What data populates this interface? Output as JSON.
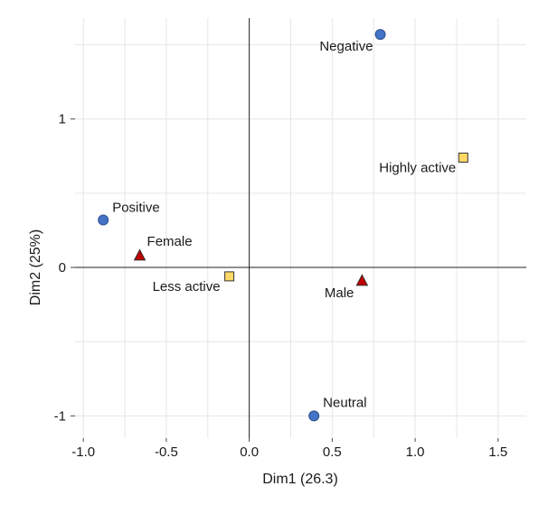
{
  "chart_data": {
    "type": "scatter",
    "xlabel": "Dim1 (26.3)",
    "ylabel": "Dim2 (25%)",
    "xlim": [
      -1.05,
      1.67
    ],
    "ylim": [
      -1.15,
      1.68
    ],
    "xticks": [
      -1.0,
      -0.5,
      0.0,
      0.5,
      1.0,
      1.5
    ],
    "xtick_labels": [
      "-1.0",
      "-0.5",
      "0.0",
      "0.5",
      "1.0",
      "1.5"
    ],
    "yticks": [
      -1,
      0,
      1
    ],
    "ytick_labels": [
      "-1",
      "0",
      "1"
    ],
    "grid": true,
    "series": [
      {
        "marker": "circle",
        "color": "#4472c4",
        "points": [
          {
            "label": "Negative",
            "x": 0.79,
            "y": 1.57
          },
          {
            "label": "Positive",
            "x": -0.88,
            "y": 0.32
          },
          {
            "label": "Neutral",
            "x": 0.39,
            "y": -1.0
          }
        ]
      },
      {
        "marker": "square",
        "color": "#ffd966",
        "points": [
          {
            "label": "Highly active",
            "x": 1.29,
            "y": 0.74
          },
          {
            "label": "Less active",
            "x": -0.12,
            "y": -0.06
          }
        ]
      },
      {
        "marker": "triangle",
        "color": "#c00000",
        "points": [
          {
            "label": "Female",
            "x": -0.66,
            "y": 0.08
          },
          {
            "label": "Male",
            "x": 0.68,
            "y": -0.09
          }
        ]
      }
    ]
  }
}
